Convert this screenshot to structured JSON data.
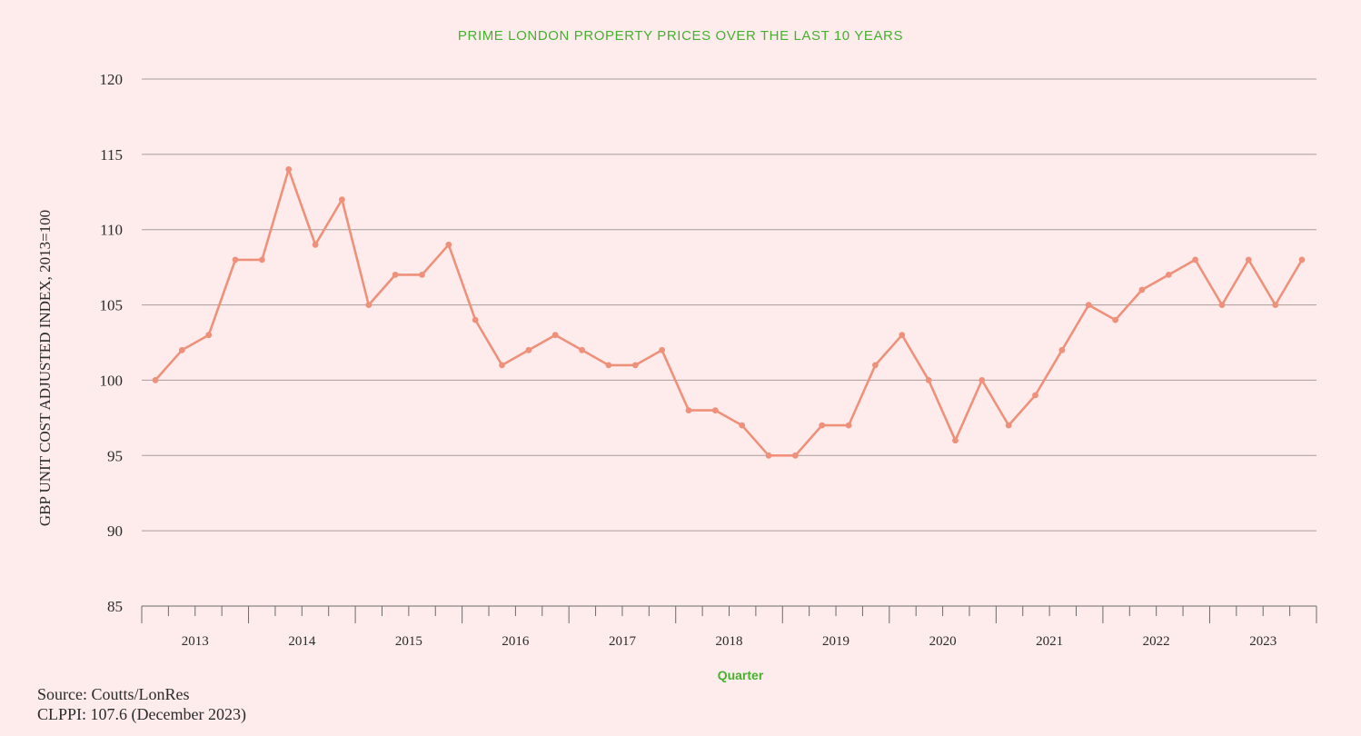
{
  "chart_data": {
    "type": "line",
    "title": "PRIME LONDON PROPERTY PRICES OVER THE LAST 10 YEARS",
    "xlabel": "Quarter",
    "ylabel": "GBP UNIT COST ADJUSTED INDEX, 2013=100",
    "ylim": [
      85,
      120
    ],
    "yticks": [
      "120",
      "115",
      "110",
      "105",
      "100",
      "95",
      "90",
      "85"
    ],
    "year_labels": [
      "2013",
      "2014",
      "2015",
      "2016",
      "2017",
      "2018",
      "2019",
      "2020",
      "2021",
      "2022",
      "2023"
    ],
    "grid": true,
    "series": [
      {
        "values": [
          100,
          102,
          103,
          108,
          108,
          114,
          109,
          112,
          105,
          107,
          107,
          109,
          104,
          101,
          102,
          103,
          102,
          101,
          101,
          102,
          98,
          98,
          97,
          95,
          95,
          97,
          97,
          101,
          103,
          100,
          96,
          100,
          97,
          99,
          102,
          105,
          104,
          106,
          107,
          108,
          105,
          108,
          105,
          108
        ]
      }
    ]
  },
  "colors": {
    "background": "#fdeceb",
    "line": "#ef917a",
    "accent": "#46b02f"
  },
  "footer": {
    "source": "Source: Coutts/LonRes",
    "clppi": "CLPPI: 107.6 (December 2023)"
  }
}
